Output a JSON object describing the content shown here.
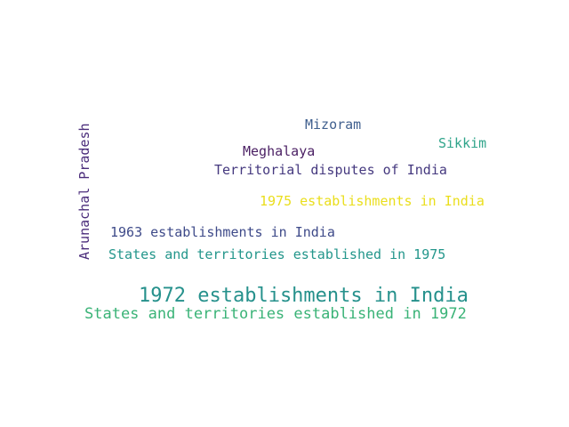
{
  "words": [
    {
      "text": "Mizoram",
      "color": "#3f5f8e"
    },
    {
      "text": "Sikkim",
      "color": "#2fa48a"
    },
    {
      "text": "Meghalaya",
      "color": "#4a1f63"
    },
    {
      "text": "Territorial disputes of India",
      "color": "#45397f"
    },
    {
      "text": "1975 establishments in India",
      "color": "#eade1b"
    },
    {
      "text": "1963 establishments in India",
      "color": "#3e4a89"
    },
    {
      "text": "States and territories established in 1975",
      "color": "#23968b"
    },
    {
      "text": "1972 establishments in India",
      "color": "#26918c"
    },
    {
      "text": "States and territories established in 1972",
      "color": "#3ab377"
    },
    {
      "text": "Arunachal Pradesh",
      "color": "#4b2d7b"
    }
  ]
}
